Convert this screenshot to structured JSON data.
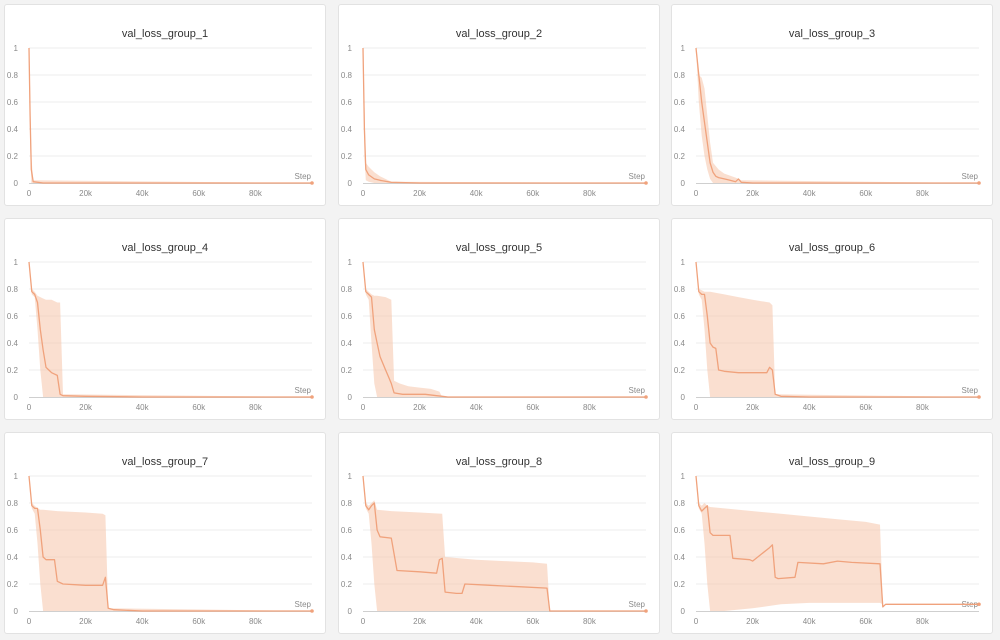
{
  "colors": {
    "line": "#f0a27c",
    "band": "#f6c9b0",
    "grid": "#ececec",
    "axis": "#cfcfcf"
  },
  "chart_data": [
    {
      "type": "line",
      "title": "val_loss_group_1",
      "xlabel": "Step",
      "ylabel": "",
      "xlim": [
        0,
        100000
      ],
      "ylim": [
        0,
        1
      ],
      "xticks": [
        0,
        20000,
        40000,
        60000,
        80000
      ],
      "xtick_labels": [
        "0",
        "20k",
        "40k",
        "60k",
        "80k"
      ],
      "yticks": [
        0,
        0.2,
        0.4,
        0.6,
        0.8,
        1
      ],
      "ytick_labels": [
        "0",
        "0.2",
        "0.4",
        "0.6",
        "0.8",
        "1"
      ],
      "series": [
        {
          "name": "val_loss_group_1",
          "x": [
            0,
            400,
            800,
            1500,
            5000,
            20000,
            40000,
            60000,
            80000,
            100000
          ],
          "y": [
            1.0,
            0.5,
            0.1,
            0.01,
            0.0,
            0.0,
            0.0,
            0.0,
            0.0,
            0.0
          ],
          "band_x": [
            0,
            400,
            800,
            1500,
            100000
          ],
          "band_lower": [
            1.0,
            0.3,
            0.0,
            0.0,
            0.0
          ],
          "band_upper": [
            1.0,
            0.7,
            0.2,
            0.02,
            0.0
          ]
        }
      ]
    },
    {
      "type": "line",
      "title": "val_loss_group_2",
      "xlabel": "Step",
      "ylabel": "",
      "xlim": [
        0,
        100000
      ],
      "ylim": [
        0,
        1
      ],
      "xticks": [
        0,
        20000,
        40000,
        60000,
        80000
      ],
      "xtick_labels": [
        "0",
        "20k",
        "40k",
        "60k",
        "80k"
      ],
      "yticks": [
        0,
        0.2,
        0.4,
        0.6,
        0.8,
        1
      ],
      "ytick_labels": [
        "0",
        "0.2",
        "0.4",
        "0.6",
        "0.8",
        "1"
      ],
      "series": [
        {
          "name": "val_loss_group_2",
          "x": [
            0,
            500,
            1000,
            2000,
            4000,
            6000,
            10000,
            20000,
            40000,
            60000,
            80000,
            100000
          ],
          "y": [
            1.0,
            0.4,
            0.1,
            0.06,
            0.03,
            0.02,
            0.005,
            0.0,
            0.0,
            0.0,
            0.0,
            0.0
          ],
          "band_x": [
            0,
            500,
            1000,
            2000,
            4000,
            6000,
            10000,
            100000
          ],
          "band_lower": [
            1.0,
            0.2,
            0.02,
            0.01,
            0.0,
            0.0,
            0.0,
            0.0
          ],
          "band_upper": [
            1.0,
            0.6,
            0.15,
            0.12,
            0.08,
            0.05,
            0.01,
            0.0
          ]
        }
      ]
    },
    {
      "type": "line",
      "title": "val_loss_group_3",
      "xlabel": "Step",
      "ylabel": "",
      "xlim": [
        0,
        100000
      ],
      "ylim": [
        0,
        1
      ],
      "xticks": [
        0,
        20000,
        40000,
        60000,
        80000
      ],
      "xtick_labels": [
        "0",
        "20k",
        "40k",
        "60k",
        "80k"
      ],
      "yticks": [
        0,
        0.2,
        0.4,
        0.6,
        0.8,
        1
      ],
      "ytick_labels": [
        "0",
        "0.2",
        "0.4",
        "0.6",
        "0.8",
        "1"
      ],
      "series": [
        {
          "name": "val_loss_group_3",
          "x": [
            0,
            1000,
            2000,
            3000,
            4000,
            5000,
            6000,
            7000,
            8000,
            10000,
            12000,
            14000,
            15000,
            16000,
            20000,
            40000,
            60000,
            80000,
            100000
          ],
          "y": [
            1.0,
            0.8,
            0.6,
            0.45,
            0.3,
            0.15,
            0.08,
            0.05,
            0.04,
            0.03,
            0.02,
            0.01,
            0.03,
            0.005,
            0.0,
            0.0,
            0.0,
            0.0,
            0.0
          ],
          "band_x": [
            0,
            1000,
            2000,
            3000,
            4000,
            5000,
            6000,
            8000,
            10000,
            14000,
            16000,
            100000
          ],
          "band_lower": [
            1.0,
            0.6,
            0.35,
            0.2,
            0.1,
            0.03,
            0.0,
            0.0,
            0.0,
            0.0,
            0.0,
            0.0
          ],
          "band_upper": [
            1.0,
            0.8,
            0.78,
            0.7,
            0.5,
            0.3,
            0.15,
            0.1,
            0.07,
            0.04,
            0.02,
            0.0
          ]
        }
      ]
    },
    {
      "type": "line",
      "title": "val_loss_group_4",
      "xlabel": "Step",
      "ylabel": "",
      "xlim": [
        0,
        100000
      ],
      "ylim": [
        0,
        1
      ],
      "xticks": [
        0,
        20000,
        40000,
        60000,
        80000
      ],
      "xtick_labels": [
        "0",
        "20k",
        "40k",
        "60k",
        "80k"
      ],
      "yticks": [
        0,
        0.2,
        0.4,
        0.6,
        0.8,
        1
      ],
      "ytick_labels": [
        "0",
        "0.2",
        "0.4",
        "0.6",
        "0.8",
        "1"
      ],
      "series": [
        {
          "name": "val_loss_group_4",
          "x": [
            0,
            1000,
            2000,
            3000,
            4000,
            5000,
            6000,
            7000,
            8000,
            9000,
            10000,
            11000,
            12000,
            20000,
            40000,
            60000,
            80000,
            100000
          ],
          "y": [
            1.0,
            0.78,
            0.76,
            0.7,
            0.5,
            0.35,
            0.22,
            0.2,
            0.18,
            0.17,
            0.16,
            0.02,
            0.01,
            0.005,
            0.0,
            0.0,
            0.0,
            0.0
          ],
          "band_x": [
            0,
            1000,
            2000,
            3000,
            4000,
            5000,
            6000,
            8000,
            10000,
            11000,
            12000,
            100000
          ],
          "band_lower": [
            1.0,
            0.76,
            0.74,
            0.5,
            0.2,
            0.0,
            0.0,
            0.0,
            0.0,
            0.0,
            0.0,
            0.0
          ],
          "band_upper": [
            1.0,
            0.8,
            0.78,
            0.75,
            0.74,
            0.73,
            0.72,
            0.72,
            0.7,
            0.7,
            0.02,
            0.0
          ]
        }
      ]
    },
    {
      "type": "line",
      "title": "val_loss_group_5",
      "xlabel": "Step",
      "ylabel": "",
      "xlim": [
        0,
        100000
      ],
      "ylim": [
        0,
        1
      ],
      "xticks": [
        0,
        20000,
        40000,
        60000,
        80000
      ],
      "xtick_labels": [
        "0",
        "20k",
        "40k",
        "60k",
        "80k"
      ],
      "yticks": [
        0,
        0.2,
        0.4,
        0.6,
        0.8,
        1
      ],
      "ytick_labels": [
        "0",
        "0.2",
        "0.4",
        "0.6",
        "0.8",
        "1"
      ],
      "series": [
        {
          "name": "val_loss_group_5",
          "x": [
            0,
            1000,
            2000,
            3000,
            4000,
            5000,
            6000,
            7000,
            8000,
            9000,
            10000,
            11000,
            14000,
            18000,
            22000,
            26000,
            28000,
            30000,
            40000,
            60000,
            80000,
            100000
          ],
          "y": [
            1.0,
            0.78,
            0.76,
            0.74,
            0.5,
            0.4,
            0.3,
            0.25,
            0.2,
            0.15,
            0.1,
            0.03,
            0.02,
            0.02,
            0.02,
            0.01,
            0.005,
            0.0,
            0.0,
            0.0,
            0.0,
            0.0
          ],
          "band_x": [
            0,
            1000,
            2000,
            3000,
            4000,
            5000,
            8000,
            10000,
            11000,
            13000,
            16000,
            20000,
            24000,
            27000,
            28000,
            100000
          ],
          "band_lower": [
            1.0,
            0.76,
            0.72,
            0.4,
            0.1,
            0.0,
            0.0,
            0.0,
            0.0,
            0.0,
            0.0,
            0.0,
            0.0,
            0.0,
            0.0,
            0.0
          ],
          "band_upper": [
            1.0,
            0.8,
            0.78,
            0.76,
            0.75,
            0.75,
            0.74,
            0.72,
            0.12,
            0.1,
            0.08,
            0.07,
            0.06,
            0.04,
            0.0,
            0.0
          ]
        }
      ]
    },
    {
      "type": "line",
      "title": "val_loss_group_6",
      "xlabel": "Step",
      "ylabel": "",
      "xlim": [
        0,
        100000
      ],
      "ylim": [
        0,
        1
      ],
      "xticks": [
        0,
        20000,
        40000,
        60000,
        80000
      ],
      "xtick_labels": [
        "0",
        "20k",
        "40k",
        "60k",
        "80k"
      ],
      "yticks": [
        0,
        0.2,
        0.4,
        0.6,
        0.8,
        1
      ],
      "ytick_labels": [
        "0",
        "0.2",
        "0.4",
        "0.6",
        "0.8",
        "1"
      ],
      "series": [
        {
          "name": "val_loss_group_6",
          "x": [
            0,
            1000,
            2000,
            3000,
            4000,
            5000,
            6000,
            7000,
            8000,
            10000,
            15000,
            20000,
            25000,
            26000,
            27000,
            28000,
            30000,
            40000,
            60000,
            80000,
            100000
          ],
          "y": [
            1.0,
            0.78,
            0.76,
            0.76,
            0.6,
            0.4,
            0.37,
            0.36,
            0.2,
            0.19,
            0.18,
            0.18,
            0.18,
            0.22,
            0.2,
            0.02,
            0.005,
            0.0,
            0.0,
            0.0,
            0.0
          ],
          "band_x": [
            0,
            1000,
            2000,
            3000,
            4000,
            5000,
            10000,
            15000,
            20000,
            26000,
            27000,
            28000,
            100000
          ],
          "band_lower": [
            1.0,
            0.76,
            0.72,
            0.5,
            0.2,
            0.0,
            0.0,
            0.0,
            0.0,
            0.0,
            0.0,
            0.0,
            0.0
          ],
          "band_upper": [
            1.0,
            0.8,
            0.79,
            0.78,
            0.78,
            0.78,
            0.76,
            0.74,
            0.72,
            0.7,
            0.68,
            0.02,
            0.0
          ]
        }
      ]
    },
    {
      "type": "line",
      "title": "val_loss_group_7",
      "xlabel": "Step",
      "ylabel": "",
      "xlim": [
        0,
        100000
      ],
      "ylim": [
        0,
        1
      ],
      "xticks": [
        0,
        20000,
        40000,
        60000,
        80000
      ],
      "xtick_labels": [
        "0",
        "20k",
        "40k",
        "60k",
        "80k"
      ],
      "yticks": [
        0,
        0.2,
        0.4,
        0.6,
        0.8,
        1
      ],
      "ytick_labels": [
        "0",
        "0.2",
        "0.4",
        "0.6",
        "0.8",
        "1"
      ],
      "series": [
        {
          "name": "val_loss_group_7",
          "x": [
            0,
            1000,
            2000,
            3000,
            4000,
            5000,
            6000,
            9000,
            10000,
            12000,
            20000,
            26000,
            27000,
            28000,
            30000,
            40000,
            60000,
            80000,
            100000
          ],
          "y": [
            1.0,
            0.78,
            0.76,
            0.76,
            0.6,
            0.4,
            0.38,
            0.38,
            0.22,
            0.2,
            0.19,
            0.19,
            0.25,
            0.02,
            0.01,
            0.0,
            0.0,
            0.0,
            0.0
          ],
          "band_x": [
            0,
            1000,
            2000,
            3000,
            4000,
            5000,
            10000,
            20000,
            26000,
            27000,
            28000,
            100000
          ],
          "band_lower": [
            1.0,
            0.76,
            0.72,
            0.5,
            0.2,
            0.0,
            0.0,
            0.0,
            0.0,
            0.0,
            0.0,
            0.0
          ],
          "band_upper": [
            1.0,
            0.8,
            0.78,
            0.76,
            0.75,
            0.75,
            0.74,
            0.73,
            0.72,
            0.71,
            0.02,
            0.0
          ]
        }
      ]
    },
    {
      "type": "line",
      "title": "val_loss_group_8",
      "xlabel": "Step",
      "ylabel": "",
      "xlim": [
        0,
        100000
      ],
      "ylim": [
        0,
        1
      ],
      "xticks": [
        0,
        20000,
        40000,
        60000,
        80000
      ],
      "xtick_labels": [
        "0",
        "20k",
        "40k",
        "60k",
        "80k"
      ],
      "yticks": [
        0,
        0.2,
        0.4,
        0.6,
        0.8,
        1
      ],
      "ytick_labels": [
        "0",
        "0.2",
        "0.4",
        "0.6",
        "0.8",
        "1"
      ],
      "series": [
        {
          "name": "val_loss_group_8",
          "x": [
            0,
            1000,
            2000,
            3000,
            4000,
            5000,
            6000,
            10000,
            12000,
            20000,
            26000,
            27000,
            28000,
            29000,
            33000,
            35000,
            36000,
            45000,
            55000,
            65000,
            66000,
            80000,
            100000
          ],
          "y": [
            1.0,
            0.78,
            0.75,
            0.78,
            0.8,
            0.6,
            0.55,
            0.54,
            0.3,
            0.29,
            0.28,
            0.38,
            0.39,
            0.14,
            0.13,
            0.13,
            0.2,
            0.19,
            0.18,
            0.17,
            0.0,
            0.0,
            0.0
          ],
          "band_x": [
            0,
            1000,
            2000,
            3000,
            4000,
            5000,
            10000,
            20000,
            28000,
            29000,
            40000,
            50000,
            60000,
            65000,
            66000,
            100000
          ],
          "band_lower": [
            1.0,
            0.76,
            0.72,
            0.5,
            0.2,
            0.0,
            0.0,
            0.0,
            0.0,
            0.0,
            0.0,
            0.0,
            0.0,
            0.0,
            0.0,
            0.0
          ],
          "band_upper": [
            1.0,
            0.8,
            0.78,
            0.8,
            0.82,
            0.75,
            0.74,
            0.73,
            0.72,
            0.4,
            0.38,
            0.37,
            0.36,
            0.35,
            0.0,
            0.0
          ]
        }
      ]
    },
    {
      "type": "line",
      "title": "val_loss_group_9",
      "xlabel": "Step",
      "ylabel": "",
      "xlim": [
        0,
        100000
      ],
      "ylim": [
        0,
        1
      ],
      "xticks": [
        0,
        20000,
        40000,
        60000,
        80000
      ],
      "xtick_labels": [
        "0",
        "20k",
        "40k",
        "60k",
        "80k"
      ],
      "yticks": [
        0,
        0.2,
        0.4,
        0.6,
        0.8,
        1
      ],
      "ytick_labels": [
        "0",
        "0.2",
        "0.4",
        "0.6",
        "0.8",
        "1"
      ],
      "series": [
        {
          "name": "val_loss_group_9",
          "x": [
            0,
            1000,
            2000,
            3000,
            4000,
            5000,
            6000,
            12000,
            13000,
            19000,
            20000,
            26000,
            27000,
            28000,
            29000,
            35000,
            36000,
            45000,
            50000,
            55000,
            65000,
            66000,
            67000,
            80000,
            100000
          ],
          "y": [
            1.0,
            0.78,
            0.74,
            0.76,
            0.78,
            0.58,
            0.56,
            0.56,
            0.39,
            0.38,
            0.37,
            0.47,
            0.49,
            0.25,
            0.24,
            0.25,
            0.36,
            0.35,
            0.37,
            0.36,
            0.35,
            0.03,
            0.05,
            0.05,
            0.05
          ],
          "band_x": [
            0,
            1000,
            2000,
            3000,
            4000,
            5000,
            10000,
            20000,
            30000,
            40000,
            50000,
            60000,
            65000,
            66000,
            100000
          ],
          "band_lower": [
            1.0,
            0.76,
            0.72,
            0.5,
            0.2,
            0.0,
            0.0,
            0.02,
            0.05,
            0.06,
            0.06,
            0.06,
            0.06,
            0.05,
            0.05
          ],
          "band_upper": [
            1.0,
            0.8,
            0.78,
            0.8,
            0.78,
            0.77,
            0.76,
            0.74,
            0.72,
            0.7,
            0.68,
            0.66,
            0.64,
            0.05,
            0.05
          ]
        }
      ]
    }
  ]
}
